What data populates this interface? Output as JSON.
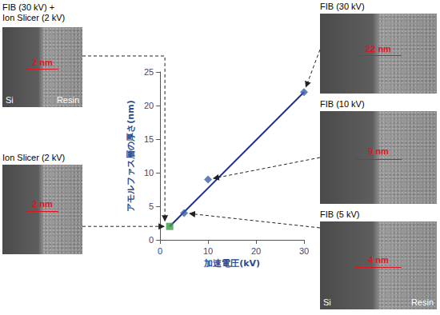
{
  "chart_data": {
    "type": "scatter",
    "x_label": "加速電圧(kV)",
    "y_label": "アモルファス層の厚さ(nm)",
    "xlim": [
      0,
      30
    ],
    "xticks": [
      0,
      10,
      20,
      30
    ],
    "ylim": [
      0,
      25
    ],
    "yticks": [
      0,
      5,
      10,
      15,
      20,
      25
    ],
    "grid": false,
    "series": [
      {
        "type": "line",
        "color": "#1f2f8c",
        "marker": "none",
        "line_style": "solid",
        "x": [
          2,
          30
        ],
        "values": [
          2,
          22
        ]
      },
      {
        "type": "scatter",
        "color": "#3c5ba9",
        "marker": "diamond",
        "x": [
          5,
          10,
          30
        ],
        "values": [
          4,
          9,
          22
        ]
      },
      {
        "type": "scatter",
        "color": "#3a9a45",
        "marker": "square",
        "x": [
          2
        ],
        "values": [
          2
        ]
      }
    ]
  },
  "panels": [
    {
      "title": "FIB (30 kV) + Ion Slicer (2 kV)",
      "thickness": "2 nm",
      "labels": [
        "Si",
        "Resin"
      ]
    },
    {
      "title": "Ion Slicer (2 kV)",
      "thickness": "2 nm"
    },
    {
      "title": "FIB (30 kV)",
      "thickness": "22 nm"
    },
    {
      "title": "FIB (10 kV)",
      "thickness": "9 nm"
    },
    {
      "title": "FIB (5 kV)",
      "thickness": "4 nm",
      "labels": [
        "Si",
        "Resin"
      ]
    }
  ]
}
